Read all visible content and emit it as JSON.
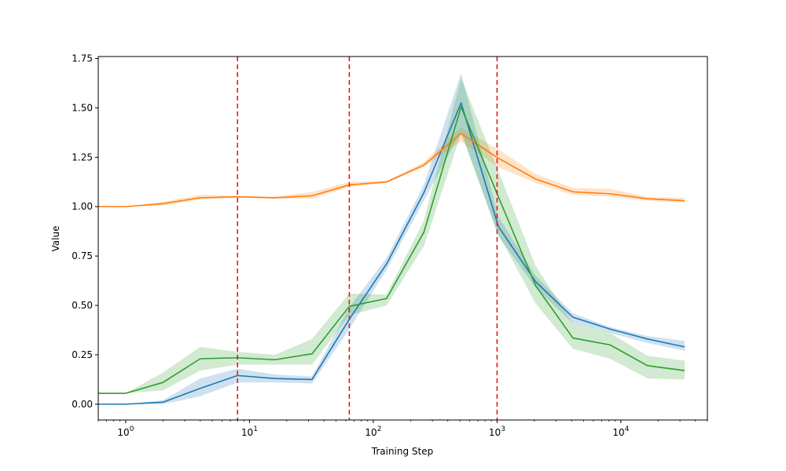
{
  "chart_data": {
    "type": "line",
    "title": "",
    "xlabel": "Training Step",
    "ylabel": "Value",
    "xscale": "log",
    "xlim": [
      0.6,
      50000
    ],
    "ylim": [
      -0.08,
      1.76
    ],
    "x": [
      1,
      2,
      4,
      8,
      16,
      32,
      64,
      128,
      256,
      512,
      1024,
      2048,
      4096,
      8192,
      16384,
      32768
    ],
    "x_start": 0.6,
    "grid": false,
    "legend": "none",
    "yticks": [
      0.0,
      0.25,
      0.5,
      0.75,
      1.0,
      1.25,
      1.5,
      1.75
    ],
    "ytick_labels": [
      "0.00",
      "0.25",
      "0.50",
      "0.75",
      "1.00",
      "1.25",
      "1.50",
      "1.75"
    ],
    "xticks": [
      {
        "value": 1,
        "base": "10",
        "exp": "0"
      },
      {
        "value": 10,
        "base": "10",
        "exp": "1"
      },
      {
        "value": 100,
        "base": "10",
        "exp": "2"
      },
      {
        "value": 1000,
        "base": "10",
        "exp": "3"
      },
      {
        "value": 10000,
        "base": "10",
        "exp": "4"
      }
    ],
    "vlines": [
      8,
      64,
      1000
    ],
    "vline_color": "#e31a1c",
    "series": [
      {
        "name": "blue",
        "color": "#1f77b4",
        "start": 0.0,
        "values": [
          0.0,
          0.01,
          0.08,
          0.145,
          0.13,
          0.125,
          0.43,
          0.71,
          1.07,
          1.525,
          0.9,
          0.62,
          0.44,
          0.38,
          0.33,
          0.29
        ],
        "lower_start": 0.0,
        "lower": [
          0.0,
          0.0,
          0.04,
          0.11,
          0.11,
          0.105,
          0.38,
          0.68,
          1.03,
          1.38,
          0.85,
          0.59,
          0.41,
          0.36,
          0.31,
          0.27
        ],
        "upper_start": 0.0,
        "upper": [
          0.0,
          0.02,
          0.13,
          0.18,
          0.15,
          0.14,
          0.49,
          0.74,
          1.11,
          1.675,
          0.95,
          0.65,
          0.46,
          0.39,
          0.345,
          0.32
        ]
      },
      {
        "name": "orange",
        "color": "#ff7f0e",
        "start": 1.0,
        "values": [
          1.0,
          1.015,
          1.045,
          1.05,
          1.045,
          1.055,
          1.11,
          1.125,
          1.21,
          1.37,
          1.245,
          1.14,
          1.075,
          1.065,
          1.04,
          1.03
        ],
        "lower_start": 1.0,
        "lower": [
          1.0,
          1.005,
          1.035,
          1.045,
          1.04,
          1.04,
          1.1,
          1.12,
          1.2,
          1.33,
          1.2,
          1.12,
          1.06,
          1.05,
          1.03,
          1.02
        ],
        "upper_start": 1.0,
        "upper": [
          1.0,
          1.025,
          1.06,
          1.055,
          1.05,
          1.075,
          1.125,
          1.13,
          1.225,
          1.4,
          1.29,
          1.165,
          1.095,
          1.09,
          1.05,
          1.045
        ]
      },
      {
        "name": "green",
        "color": "#2ca02c",
        "start": 0.055,
        "values": [
          0.055,
          0.11,
          0.23,
          0.235,
          0.225,
          0.255,
          0.495,
          0.535,
          0.87,
          1.505,
          1.05,
          0.6,
          0.335,
          0.3,
          0.195,
          0.17
        ],
        "lower_start": 0.055,
        "lower": [
          0.055,
          0.07,
          0.17,
          0.2,
          0.2,
          0.2,
          0.45,
          0.5,
          0.8,
          1.37,
          0.86,
          0.51,
          0.28,
          0.23,
          0.13,
          0.125
        ],
        "upper_start": 0.055,
        "upper": [
          0.055,
          0.16,
          0.29,
          0.265,
          0.25,
          0.33,
          0.56,
          0.555,
          0.93,
          1.65,
          1.18,
          0.7,
          0.41,
          0.36,
          0.245,
          0.22
        ]
      }
    ]
  }
}
